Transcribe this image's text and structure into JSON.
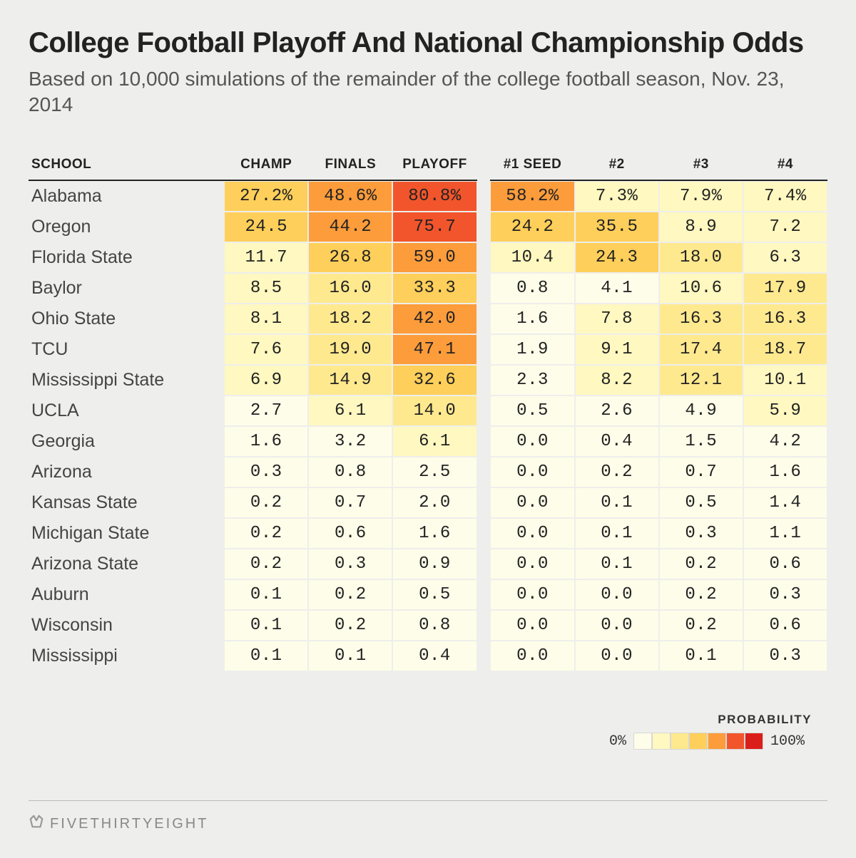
{
  "title": "College Football Playoff And National Championship Odds",
  "subtitle": "Based on 10,000 simulations of the remainder of the college football season, Nov. 23, 2014",
  "columns": {
    "school": "SCHOOL",
    "champ": "CHAMP",
    "finals": "FINALS",
    "playoff": "PLAYOFF",
    "seed1": "#1 SEED",
    "seed2": "#2",
    "seed3": "#3",
    "seed4": "#4"
  },
  "heat_scale": {
    "colors": [
      "#fefde9",
      "#fff8c0",
      "#fee98f",
      "#fecf5a",
      "#fc9c3b",
      "#f2552c",
      "#da1f1b"
    ],
    "stops": [
      0,
      5,
      12,
      22,
      38,
      60,
      100
    ]
  },
  "rows": [
    {
      "school": "Alabama",
      "champ": "27.2%",
      "finals": "48.6%",
      "playoff": "80.8%",
      "seed1": "58.2%",
      "seed2": "7.3%",
      "seed3": "7.9%",
      "seed4": "7.4%",
      "v": {
        "champ": 27.2,
        "finals": 48.6,
        "playoff": 80.8,
        "seed1": 58.2,
        "seed2": 7.3,
        "seed3": 7.9,
        "seed4": 7.4
      }
    },
    {
      "school": "Oregon",
      "champ": "24.5",
      "finals": "44.2",
      "playoff": "75.7",
      "seed1": "24.2",
      "seed2": "35.5",
      "seed3": "8.9",
      "seed4": "7.2",
      "v": {
        "champ": 24.5,
        "finals": 44.2,
        "playoff": 75.7,
        "seed1": 24.2,
        "seed2": 35.5,
        "seed3": 8.9,
        "seed4": 7.2
      }
    },
    {
      "school": "Florida State",
      "champ": "11.7",
      "finals": "26.8",
      "playoff": "59.0",
      "seed1": "10.4",
      "seed2": "24.3",
      "seed3": "18.0",
      "seed4": "6.3",
      "v": {
        "champ": 11.7,
        "finals": 26.8,
        "playoff": 59.0,
        "seed1": 10.4,
        "seed2": 24.3,
        "seed3": 18.0,
        "seed4": 6.3
      }
    },
    {
      "school": "Baylor",
      "champ": "8.5",
      "finals": "16.0",
      "playoff": "33.3",
      "seed1": "0.8",
      "seed2": "4.1",
      "seed3": "10.6",
      "seed4": "17.9",
      "v": {
        "champ": 8.5,
        "finals": 16.0,
        "playoff": 33.3,
        "seed1": 0.8,
        "seed2": 4.1,
        "seed3": 10.6,
        "seed4": 17.9
      }
    },
    {
      "school": "Ohio State",
      "champ": "8.1",
      "finals": "18.2",
      "playoff": "42.0",
      "seed1": "1.6",
      "seed2": "7.8",
      "seed3": "16.3",
      "seed4": "16.3",
      "v": {
        "champ": 8.1,
        "finals": 18.2,
        "playoff": 42.0,
        "seed1": 1.6,
        "seed2": 7.8,
        "seed3": 16.3,
        "seed4": 16.3
      }
    },
    {
      "school": "TCU",
      "champ": "7.6",
      "finals": "19.0",
      "playoff": "47.1",
      "seed1": "1.9",
      "seed2": "9.1",
      "seed3": "17.4",
      "seed4": "18.7",
      "v": {
        "champ": 7.6,
        "finals": 19.0,
        "playoff": 47.1,
        "seed1": 1.9,
        "seed2": 9.1,
        "seed3": 17.4,
        "seed4": 18.7
      }
    },
    {
      "school": "Mississippi State",
      "champ": "6.9",
      "finals": "14.9",
      "playoff": "32.6",
      "seed1": "2.3",
      "seed2": "8.2",
      "seed3": "12.1",
      "seed4": "10.1",
      "v": {
        "champ": 6.9,
        "finals": 14.9,
        "playoff": 32.6,
        "seed1": 2.3,
        "seed2": 8.2,
        "seed3": 12.1,
        "seed4": 10.1
      }
    },
    {
      "school": "UCLA",
      "champ": "2.7",
      "finals": "6.1",
      "playoff": "14.0",
      "seed1": "0.5",
      "seed2": "2.6",
      "seed3": "4.9",
      "seed4": "5.9",
      "v": {
        "champ": 2.7,
        "finals": 6.1,
        "playoff": 14.0,
        "seed1": 0.5,
        "seed2": 2.6,
        "seed3": 4.9,
        "seed4": 5.9
      }
    },
    {
      "school": "Georgia",
      "champ": "1.6",
      "finals": "3.2",
      "playoff": "6.1",
      "seed1": "0.0",
      "seed2": "0.4",
      "seed3": "1.5",
      "seed4": "4.2",
      "v": {
        "champ": 1.6,
        "finals": 3.2,
        "playoff": 6.1,
        "seed1": 0.0,
        "seed2": 0.4,
        "seed3": 1.5,
        "seed4": 4.2
      }
    },
    {
      "school": "Arizona",
      "champ": "0.3",
      "finals": "0.8",
      "playoff": "2.5",
      "seed1": "0.0",
      "seed2": "0.2",
      "seed3": "0.7",
      "seed4": "1.6",
      "v": {
        "champ": 0.3,
        "finals": 0.8,
        "playoff": 2.5,
        "seed1": 0.0,
        "seed2": 0.2,
        "seed3": 0.7,
        "seed4": 1.6
      }
    },
    {
      "school": "Kansas State",
      "champ": "0.2",
      "finals": "0.7",
      "playoff": "2.0",
      "seed1": "0.0",
      "seed2": "0.1",
      "seed3": "0.5",
      "seed4": "1.4",
      "v": {
        "champ": 0.2,
        "finals": 0.7,
        "playoff": 2.0,
        "seed1": 0.0,
        "seed2": 0.1,
        "seed3": 0.5,
        "seed4": 1.4
      }
    },
    {
      "school": "Michigan State",
      "champ": "0.2",
      "finals": "0.6",
      "playoff": "1.6",
      "seed1": "0.0",
      "seed2": "0.1",
      "seed3": "0.3",
      "seed4": "1.1",
      "v": {
        "champ": 0.2,
        "finals": 0.6,
        "playoff": 1.6,
        "seed1": 0.0,
        "seed2": 0.1,
        "seed3": 0.3,
        "seed4": 1.1
      }
    },
    {
      "school": "Arizona State",
      "champ": "0.2",
      "finals": "0.3",
      "playoff": "0.9",
      "seed1": "0.0",
      "seed2": "0.1",
      "seed3": "0.2",
      "seed4": "0.6",
      "v": {
        "champ": 0.2,
        "finals": 0.3,
        "playoff": 0.9,
        "seed1": 0.0,
        "seed2": 0.1,
        "seed3": 0.2,
        "seed4": 0.6
      }
    },
    {
      "school": "Auburn",
      "champ": "0.1",
      "finals": "0.2",
      "playoff": "0.5",
      "seed1": "0.0",
      "seed2": "0.0",
      "seed3": "0.2",
      "seed4": "0.3",
      "v": {
        "champ": 0.1,
        "finals": 0.2,
        "playoff": 0.5,
        "seed1": 0.0,
        "seed2": 0.0,
        "seed3": 0.2,
        "seed4": 0.3
      }
    },
    {
      "school": "Wisconsin",
      "champ": "0.1",
      "finals": "0.2",
      "playoff": "0.8",
      "seed1": "0.0",
      "seed2": "0.0",
      "seed3": "0.2",
      "seed4": "0.6",
      "v": {
        "champ": 0.1,
        "finals": 0.2,
        "playoff": 0.8,
        "seed1": 0.0,
        "seed2": 0.0,
        "seed3": 0.2,
        "seed4": 0.6
      }
    },
    {
      "school": "Mississippi",
      "champ": "0.1",
      "finals": "0.1",
      "playoff": "0.4",
      "seed1": "0.0",
      "seed2": "0.0",
      "seed3": "0.1",
      "seed4": "0.3",
      "v": {
        "champ": 0.1,
        "finals": 0.1,
        "playoff": 0.4,
        "seed1": 0.0,
        "seed2": 0.0,
        "seed3": 0.1,
        "seed4": 0.3
      }
    }
  ],
  "legend": {
    "title": "PROBABILITY",
    "min": "0%",
    "max": "100%",
    "swatches": [
      "#fefde9",
      "#fff8c0",
      "#fee98f",
      "#fecf5a",
      "#fc9c3b",
      "#f2552c",
      "#da1f1b"
    ]
  },
  "footer": {
    "brand": "FIVETHIRTYEIGHT"
  },
  "style": {
    "background": "#eeeeec",
    "header_border": "#222222",
    "cell_border": "#eeeeec",
    "title_fontsize": 40,
    "subtitle_fontsize": 28,
    "cell_fontsize": 24,
    "school_fontsize": 25
  }
}
